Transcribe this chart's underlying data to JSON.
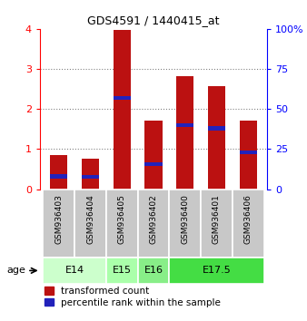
{
  "title": "GDS4591 / 1440415_at",
  "samples": [
    "GSM936403",
    "GSM936404",
    "GSM936405",
    "GSM936402",
    "GSM936400",
    "GSM936401",
    "GSM936406"
  ],
  "red_values": [
    0.85,
    0.75,
    3.97,
    1.7,
    2.82,
    2.58,
    1.7
  ],
  "blue_values": [
    0.32,
    0.3,
    2.28,
    0.62,
    1.6,
    1.52,
    0.92
  ],
  "age_groups": [
    {
      "label": "E14",
      "samples": [
        "GSM936403",
        "GSM936404"
      ],
      "color": "#ccffcc"
    },
    {
      "label": "E15",
      "samples": [
        "GSM936405"
      ],
      "color": "#aaffaa"
    },
    {
      "label": "E16",
      "samples": [
        "GSM936402"
      ],
      "color": "#88ee88"
    },
    {
      "label": "E17.5",
      "samples": [
        "GSM936400",
        "GSM936401",
        "GSM936406"
      ],
      "color": "#44dd44"
    }
  ],
  "ylim_left": [
    0,
    4
  ],
  "ylim_right": [
    0,
    100
  ],
  "yticks_left": [
    0,
    1,
    2,
    3,
    4
  ],
  "yticks_right": [
    0,
    25,
    50,
    75,
    100
  ],
  "bar_color": "#bb1111",
  "blue_color": "#2222bb",
  "bg_color": "#c8c8c8",
  "label_red": "transformed count",
  "label_blue": "percentile rank within the sample",
  "bar_width": 0.55,
  "blue_bar_height": 0.1,
  "title_fontsize": 9,
  "tick_fontsize": 8,
  "sample_fontsize": 6.5,
  "age_fontsize": 8,
  "legend_fontsize": 7.5
}
